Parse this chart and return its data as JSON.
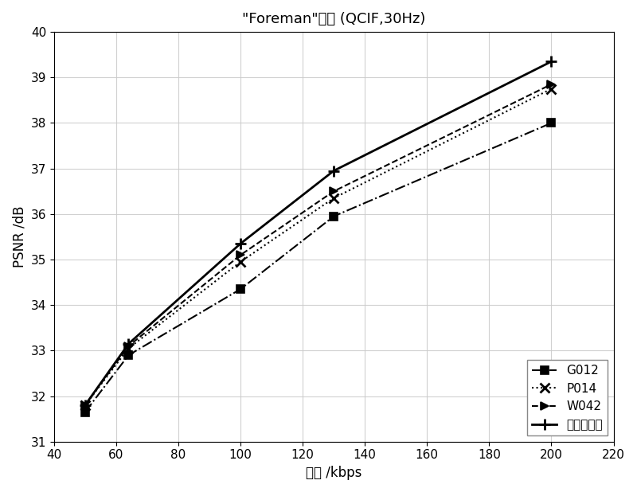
{
  "title": "\"Foreman\"序列 (QCIF,30Hz)",
  "xlabel": "码率 /kbps",
  "ylabel": "PSNR /dB",
  "xlim": [
    40,
    220
  ],
  "ylim": [
    31,
    40
  ],
  "xticks": [
    40,
    60,
    80,
    100,
    120,
    140,
    160,
    180,
    200,
    220
  ],
  "yticks": [
    31,
    32,
    33,
    34,
    35,
    36,
    37,
    38,
    39,
    40
  ],
  "series": [
    {
      "label": "G012",
      "x": [
        50,
        64,
        100,
        130,
        200
      ],
      "y": [
        31.65,
        32.9,
        34.35,
        35.95,
        38.0
      ],
      "color": "#000000",
      "linestyle": "-.",
      "marker": "s",
      "markersize": 7,
      "linewidth": 1.5
    },
    {
      "label": "P014",
      "x": [
        50,
        64,
        100,
        130,
        200
      ],
      "y": [
        31.8,
        33.05,
        34.95,
        36.35,
        38.75
      ],
      "color": "#000000",
      "linestyle": ":",
      "marker": "x",
      "markersize": 8,
      "linewidth": 1.5
    },
    {
      "label": "W042",
      "x": [
        50,
        64,
        100,
        130,
        200
      ],
      "y": [
        31.8,
        33.1,
        35.1,
        36.5,
        38.85
      ],
      "color": "#000000",
      "linestyle": "--",
      "marker": ">",
      "markersize": 7,
      "linewidth": 1.5
    },
    {
      "label": "本发明算法",
      "x": [
        50,
        64,
        100,
        130,
        200
      ],
      "y": [
        31.8,
        33.15,
        35.35,
        36.95,
        39.35
      ],
      "color": "#000000",
      "linestyle": "-",
      "marker": "+",
      "markersize": 10,
      "linewidth": 2.0
    }
  ],
  "legend_loc": "lower right",
  "grid": true,
  "grid_color": "#cccccc",
  "grid_linestyle": "-",
  "background_color": "#ffffff",
  "title_fontsize": 13,
  "label_fontsize": 12,
  "tick_fontsize": 11,
  "legend_fontsize": 11
}
